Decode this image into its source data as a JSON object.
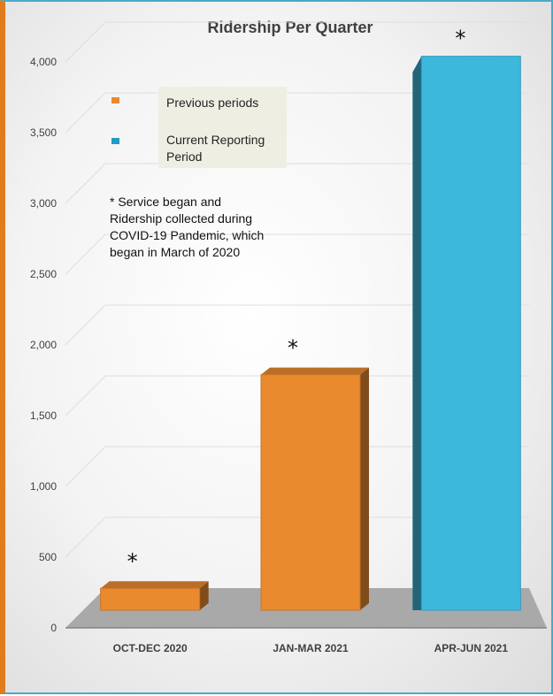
{
  "chart_data": {
    "type": "bar",
    "title": "Ridership Per Quarter",
    "categories": [
      "OCT-DEC 2020",
      "JAN-MAR 2021",
      "APR-JUN 2021"
    ],
    "values": [
      110,
      1620,
      3870
    ],
    "point_colors": [
      "#e98a2f",
      "#e98a2f",
      "#3cb8dc"
    ],
    "point_markers": [
      "*",
      "*",
      "*"
    ],
    "ylim": [
      0,
      4000
    ],
    "yticks": [
      "0",
      "500",
      "1,000",
      "1,500",
      "2,000",
      "2,500",
      "3,000",
      "3,500",
      "4,000"
    ],
    "grid": true,
    "legend_position": "top-left",
    "legend": [
      {
        "label": "Previous periods",
        "color": "#e98a2f"
      },
      {
        "label": "Current Reporting Period",
        "color": "#1f9bc4"
      }
    ],
    "annotation": "* Service began and Ridership collected during COVID-19 Pandemic, which began in March of 2020"
  }
}
